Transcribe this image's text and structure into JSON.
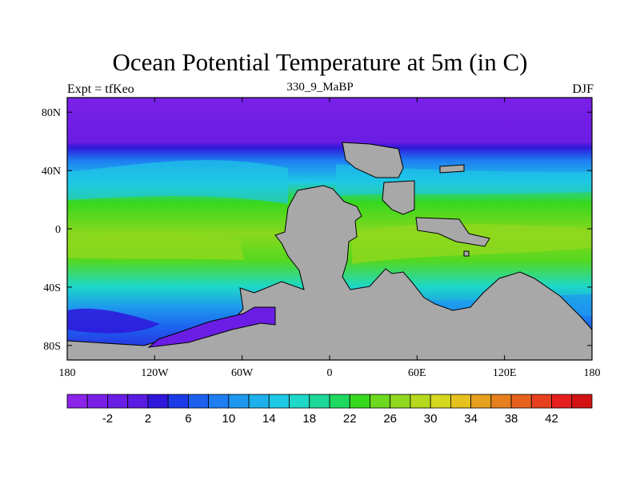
{
  "title": "Ocean Potential Temperature at 5m (in C)",
  "subtitle": "330_9_MaBP",
  "left_label": "Expt = tfKeo",
  "right_label": "DJF",
  "map": {
    "projection": "cylindrical-equidistant",
    "lon_range": [
      -180,
      180
    ],
    "lat_range": [
      -90,
      90
    ],
    "land_color": "#a8a8a8",
    "lat_ticks": [
      {
        "lat": 80,
        "label": "80N"
      },
      {
        "lat": 40,
        "label": "40N"
      },
      {
        "lat": 0,
        "label": "0"
      },
      {
        "lat": -40,
        "label": "40S"
      },
      {
        "lat": -80,
        "label": "80S"
      }
    ],
    "lon_ticks": [
      {
        "lon": -180,
        "label": "180"
      },
      {
        "lon": -120,
        "label": "120W"
      },
      {
        "lon": -60,
        "label": "60W"
      },
      {
        "lon": 0,
        "label": "0"
      },
      {
        "lon": 60,
        "label": "60E"
      },
      {
        "lon": 120,
        "label": "120E"
      },
      {
        "lon": 180,
        "label": "180"
      }
    ]
  },
  "colorbar": {
    "min": -6,
    "max": 46,
    "step": 2,
    "colors": [
      "#8b23e8",
      "#7a20e6",
      "#6a1de4",
      "#5a1ce2",
      "#2f18da",
      "#1c3be8",
      "#1d5fef",
      "#1e7ef2",
      "#1e98ee",
      "#1eb0ea",
      "#1ec8e6",
      "#1ed8c8",
      "#1ed89a",
      "#1ed860",
      "#36d81e",
      "#6cd81e",
      "#90d81e",
      "#b6d81e",
      "#d4d81e",
      "#e6c01e",
      "#e6a01e",
      "#e6801e",
      "#e6601e",
      "#e6401e",
      "#e61e1e",
      "#d21414"
    ],
    "labels": [
      "-2",
      "2",
      "6",
      "10",
      "14",
      "18",
      "22",
      "26",
      "30",
      "34",
      "38",
      "42"
    ]
  }
}
